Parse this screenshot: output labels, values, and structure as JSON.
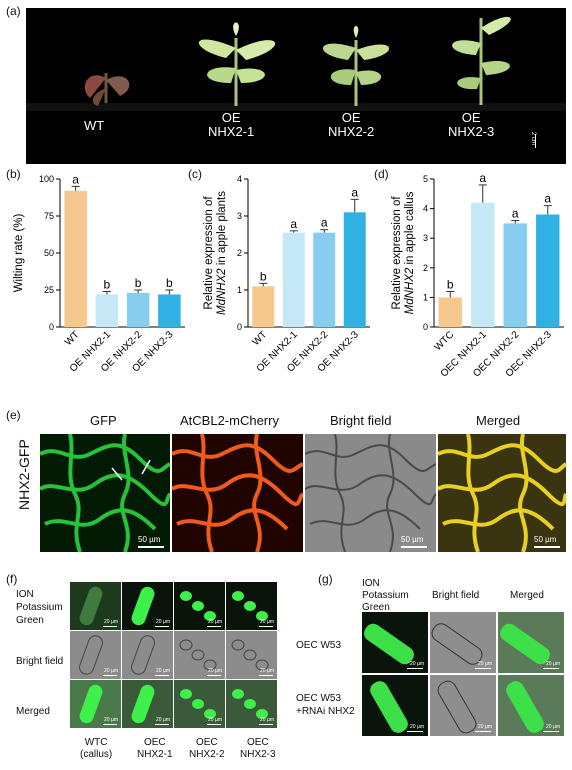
{
  "panel_labels": {
    "a": "(a)",
    "b": "(b)",
    "c": "(c)",
    "d": "(d)",
    "e": "(e)",
    "f": "(f)",
    "g": "(g)"
  },
  "panel_a": {
    "plants": [
      {
        "label": "WT"
      },
      {
        "label": "OE\nNHX2-1"
      },
      {
        "label": "OE\nNHX2-2"
      },
      {
        "label": "OE\nNHX2-3"
      }
    ],
    "scale": "2 cm"
  },
  "chart_data": [
    {
      "type": "bar",
      "ylabel": "Wilting rate (%)",
      "categories": [
        "WT",
        "OE NHX2-1",
        "OE NHX2-2",
        "OE NHX2-3"
      ],
      "values": [
        92,
        22,
        23,
        22
      ],
      "errors": [
        3,
        2,
        2,
        3
      ],
      "letters": [
        "a",
        "b",
        "b",
        "b"
      ],
      "ylim": [
        0,
        100
      ],
      "yticks": [
        0,
        25,
        50,
        75,
        100
      ],
      "colors": [
        "#f6c88e",
        "#c5e8f7",
        "#86cdef",
        "#2fb1e4"
      ]
    },
    {
      "type": "bar",
      "ylabel": "Relative expression of MdNHX2 in apple plants",
      "categories": [
        "WT",
        "OE NHX2-1",
        "OE NHX2-2",
        "OE NHX2-3"
      ],
      "values": [
        1.1,
        2.55,
        2.55,
        3.1
      ],
      "errors": [
        0.08,
        0.05,
        0.08,
        0.35
      ],
      "letters": [
        "b",
        "a",
        "a",
        "a"
      ],
      "ylim": [
        0,
        4
      ],
      "yticks": [
        0,
        1,
        2,
        3,
        4
      ],
      "colors": [
        "#f6c88e",
        "#c5e8f7",
        "#86cdef",
        "#2fb1e4"
      ]
    },
    {
      "type": "bar",
      "ylabel": "Relative expression of MdNHX2 in apple callus",
      "categories": [
        "WTC",
        "OEC NHX2-1",
        "OEC NHX2-2",
        "OEC NHX2-3"
      ],
      "values": [
        1.0,
        4.2,
        3.5,
        3.8
      ],
      "errors": [
        0.2,
        0.6,
        0.1,
        0.3
      ],
      "letters": [
        "b",
        "a",
        "a",
        "a"
      ],
      "ylim": [
        0,
        5
      ],
      "yticks": [
        0,
        1,
        2,
        3,
        4,
        5
      ],
      "colors": [
        "#f6c88e",
        "#c5e8f7",
        "#86cdef",
        "#2fb1e4"
      ]
    }
  ],
  "panel_e": {
    "row_label": "NHX2-GFP",
    "columns": [
      "GFP",
      "AtCBL2-mCherry",
      "Bright field",
      "Merged"
    ],
    "scale": "50 µm"
  },
  "panel_f": {
    "rows": [
      "ION Potassium Green",
      "Bright field",
      "Merged"
    ],
    "columns": [
      "WTC\n(callus)",
      "OEC\nNHX2-1",
      "OEC\nNHX2-2",
      "OEC\nNHX2-3"
    ],
    "scale": "20 µm"
  },
  "panel_g": {
    "columns": [
      "ION Potassium Green",
      "Bright field",
      "Merged"
    ],
    "rows": [
      "OEC W53",
      "OEC W53\n+RNAi NHX2"
    ],
    "scale": "20 µm"
  }
}
